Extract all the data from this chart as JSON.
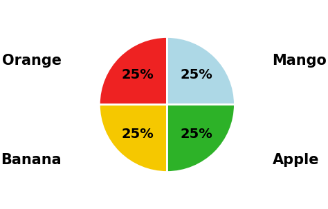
{
  "values": [
    25,
    25,
    25,
    25
  ],
  "colors": [
    "#add8e6",
    "#ee2222",
    "#f5c800",
    "#2db228"
  ],
  "background_color": "#ffffff",
  "pct_fontsize": 14,
  "label_fontsize": 15,
  "startangle": 90,
  "label_coords": [
    [
      -1.32,
      0.55,
      "Orange"
    ],
    [
      1.32,
      0.55,
      "Mango"
    ],
    [
      -1.32,
      -0.7,
      "Banana"
    ],
    [
      1.32,
      -0.7,
      "Apple"
    ]
  ]
}
